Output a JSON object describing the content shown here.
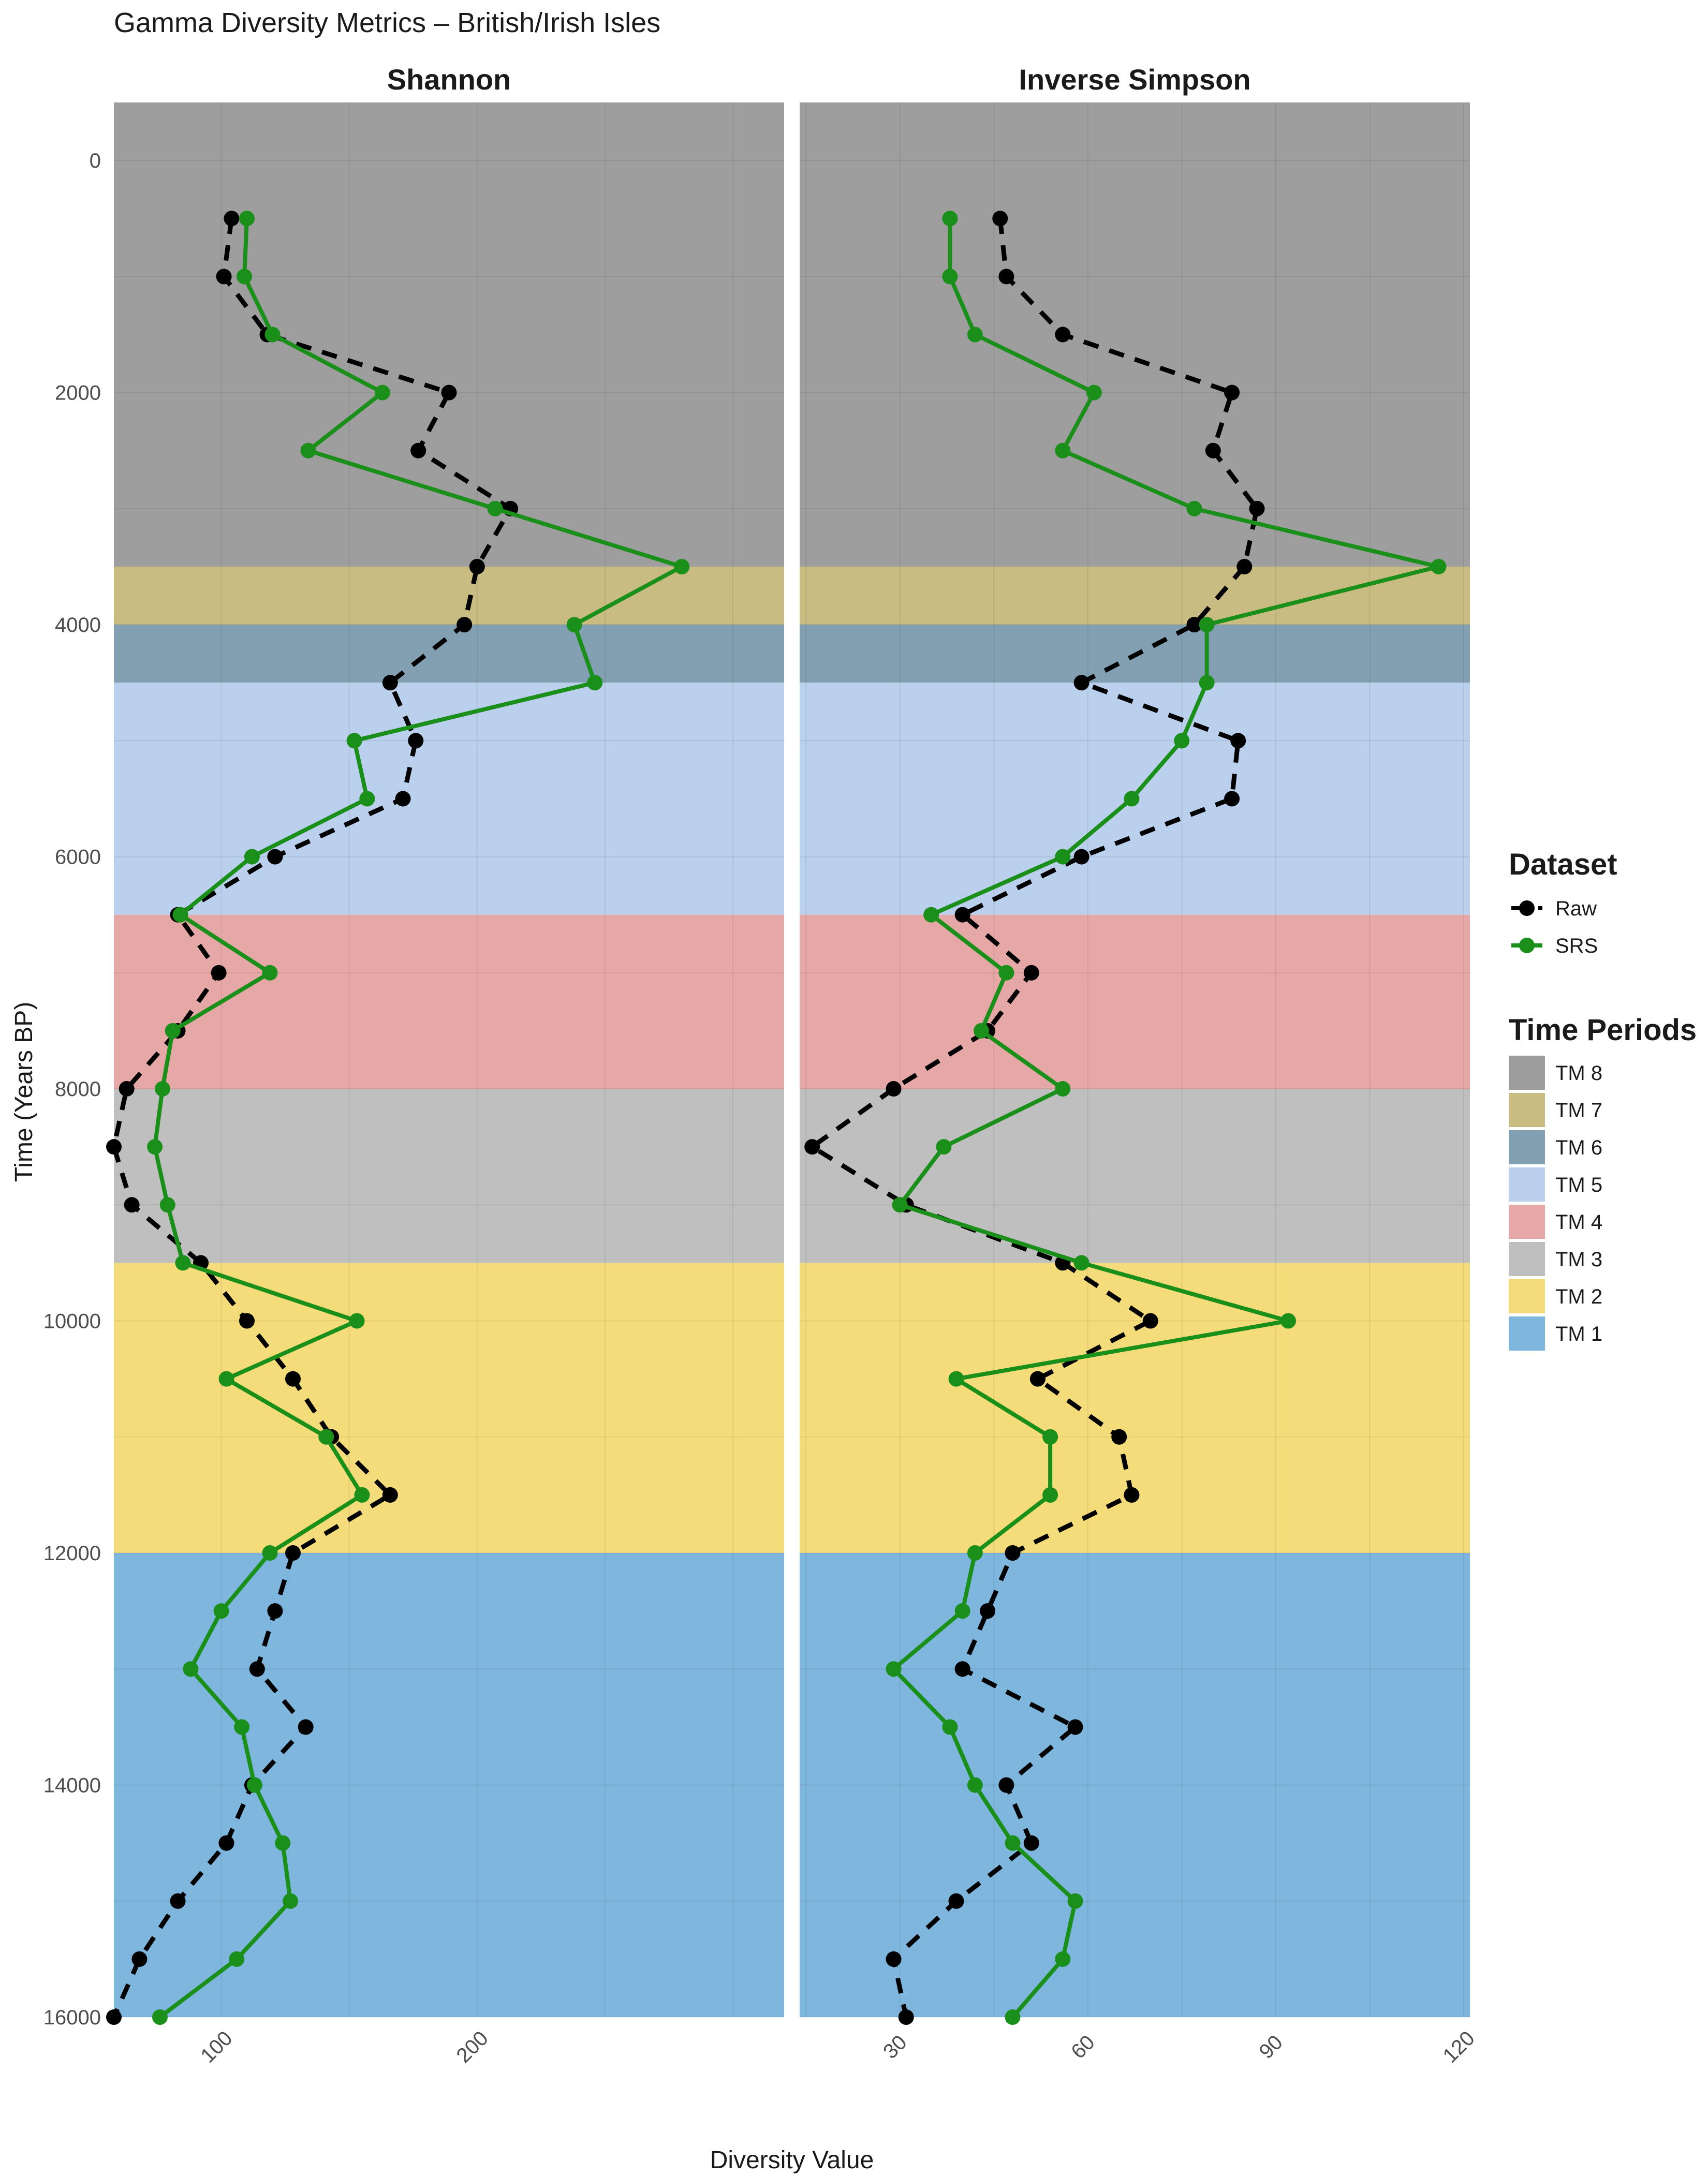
{
  "chart_data": {
    "type": "line",
    "title": "Gamma Diversity Metrics – British/Irish Isles",
    "xlabel": "Diversity Value",
    "ylabel": "Time (Years BP)",
    "y_reversed": true,
    "ylim": [
      -500,
      16000
    ],
    "y_ticks": [
      0,
      2000,
      4000,
      6000,
      8000,
      10000,
      12000,
      14000,
      16000
    ],
    "grid": true,
    "legend_position": "right",
    "legends": {
      "dataset": {
        "title": "Dataset",
        "items": [
          {
            "label": "Raw",
            "color": "#000000",
            "line": "dashed"
          },
          {
            "label": "SRS",
            "color": "#1a8f1a",
            "line": "solid"
          }
        ]
      },
      "periods": {
        "title": "Time Periods",
        "items": [
          {
            "label": "TM 8",
            "color": "#9e9e9e"
          },
          {
            "label": "TM 7",
            "color": "#c8bc82"
          },
          {
            "label": "TM 6",
            "color": "#839fb2"
          },
          {
            "label": "TM 5",
            "color": "#bad0ec"
          },
          {
            "label": "TM 4",
            "color": "#e6a8a6"
          },
          {
            "label": "TM 3",
            "color": "#bfbfbf"
          },
          {
            "label": "TM 2",
            "color": "#f5dc7a"
          },
          {
            "label": "TM 1",
            "color": "#7fb6de"
          }
        ]
      }
    },
    "time_periods": [
      {
        "label": "TM 8",
        "from": -500,
        "to": 3500,
        "color": "#9e9e9e"
      },
      {
        "label": "TM 7",
        "from": 3500,
        "to": 4000,
        "color": "#c8bc82"
      },
      {
        "label": "TM 6",
        "from": 4000,
        "to": 4500,
        "color": "#839fb2"
      },
      {
        "label": "TM 5",
        "from": 4500,
        "to": 6500,
        "color": "#bad0ec"
      },
      {
        "label": "TM 4",
        "from": 6500,
        "to": 8000,
        "color": "#e6a8a6"
      },
      {
        "label": "TM 3",
        "from": 8000,
        "to": 9500,
        "color": "#bfbfbf"
      },
      {
        "label": "TM 2",
        "from": 9500,
        "to": 12000,
        "color": "#f5dc7a"
      },
      {
        "label": "TM 1",
        "from": 12000,
        "to": 16000,
        "color": "#7fb6de"
      }
    ],
    "time": [
      500,
      1000,
      1500,
      2000,
      2500,
      3000,
      3500,
      4000,
      4500,
      5000,
      5500,
      6000,
      6500,
      7000,
      7500,
      8000,
      8500,
      9000,
      9500,
      10000,
      10500,
      11000,
      11500,
      12000,
      12500,
      13000,
      13500,
      14000,
      14500,
      15000,
      15500,
      16000
    ],
    "panels": [
      {
        "title": "Shannon",
        "xlim": [
          58,
          320
        ],
        "x_ticks": [
          100,
          200
        ],
        "series": [
          {
            "name": "Raw",
            "values": [
              104,
              101,
              118,
              189,
              177,
              213,
              200,
              195,
              166,
              176,
              171,
              121,
              83,
              99,
              83,
              63,
              58,
              65,
              92,
              110,
              128,
              143,
              166,
              128,
              121,
              114,
              133,
              112,
              102,
              83,
              68,
              58
            ]
          },
          {
            "name": "SRS",
            "values": [
              110,
              109,
              120,
              163,
              134,
              207,
              280,
              238,
              246,
              152,
              157,
              112,
              84,
              119,
              81,
              77,
              74,
              79,
              85,
              153,
              102,
              141,
              155,
              119,
              100,
              88,
              108,
              113,
              124,
              127,
              106,
              76
            ]
          }
        ]
      },
      {
        "title": "Inverse Simpson",
        "xlim": [
          14,
          121
        ],
        "x_ticks": [
          30,
          60,
          90,
          120
        ],
        "series": [
          {
            "name": "Raw",
            "values": [
              46,
              47,
              56,
              83,
              80,
              87,
              85,
              77,
              59,
              84,
              83,
              59,
              40,
              51,
              44,
              29,
              16,
              31,
              56,
              70,
              52,
              65,
              67,
              48,
              44,
              40,
              58,
              47,
              51,
              39,
              29,
              31
            ]
          },
          {
            "name": "SRS",
            "values": [
              38,
              38,
              42,
              61,
              56,
              77,
              116,
              79,
              79,
              75,
              67,
              56,
              35,
              47,
              43,
              56,
              37,
              30,
              59,
              92,
              39,
              54,
              54,
              42,
              40,
              29,
              38,
              42,
              48,
              58,
              56,
              48
            ]
          }
        ]
      }
    ]
  }
}
